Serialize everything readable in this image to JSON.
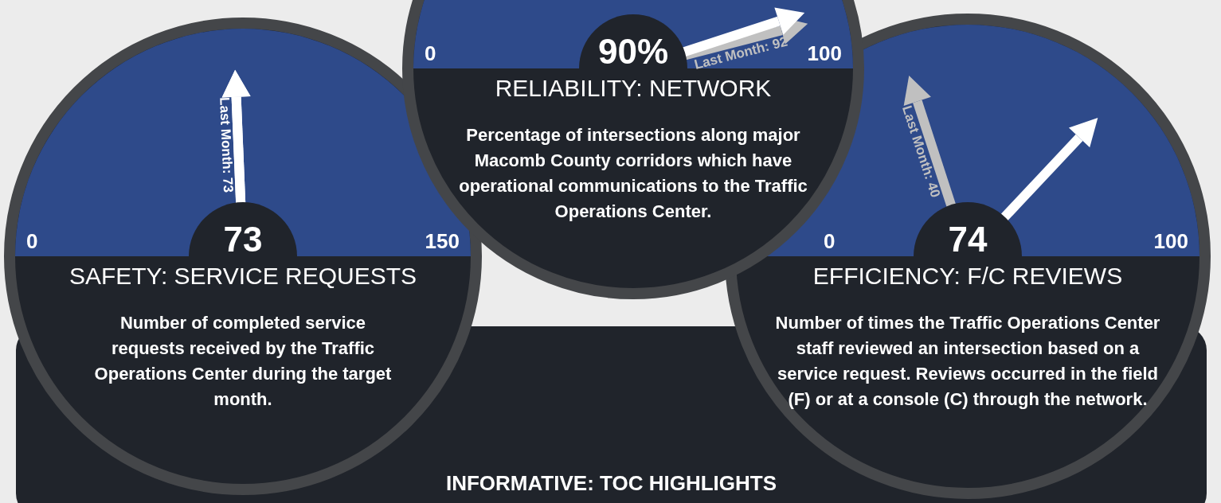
{
  "chart_data": [
    {
      "type": "other",
      "title": "SAFETY: SERVICE REQUESTS",
      "subtitle": "Number of completed service requests received by the Traffic Operations Center during the target month.",
      "annotations": [
        "0",
        "150"
      ],
      "values": [
        73,
        73
      ],
      "colors": [
        "#ffffff",
        "#ffffff"
      ],
      "value_labels": [
        "73",
        "Last Month: 73"
      ]
    },
    {
      "type": "other",
      "title": "RELIABILITY: NETWORK",
      "subtitle": "Percentage of intersections along major Macomb County corridors which have operational communications to the Traffic Operations Center.",
      "annotations": [
        "0",
        "100"
      ],
      "values": [
        90,
        92
      ],
      "colors": [
        "#ffffff",
        "#c0c0c0"
      ],
      "value_labels": [
        "90%",
        "Last Month: 92"
      ]
    },
    {
      "type": "other",
      "title": "EFFICIENCY: F/C REVIEWS",
      "subtitle": "Number of times the Traffic Operations Center staff reviewed an intersection based on a service request.  Reviews occurred in the field (F) or at a console (C) through the network.",
      "annotations": [
        "0",
        "100"
      ],
      "values": [
        74,
        40
      ],
      "colors": [
        "#ffffff",
        "#c0c0c0"
      ],
      "value_labels": [
        "74",
        "Last Month: 40"
      ]
    },
    {
      "type": "other",
      "title": "INFORMATIVE: TOC HIGHLIGHTS"
    }
  ]
}
